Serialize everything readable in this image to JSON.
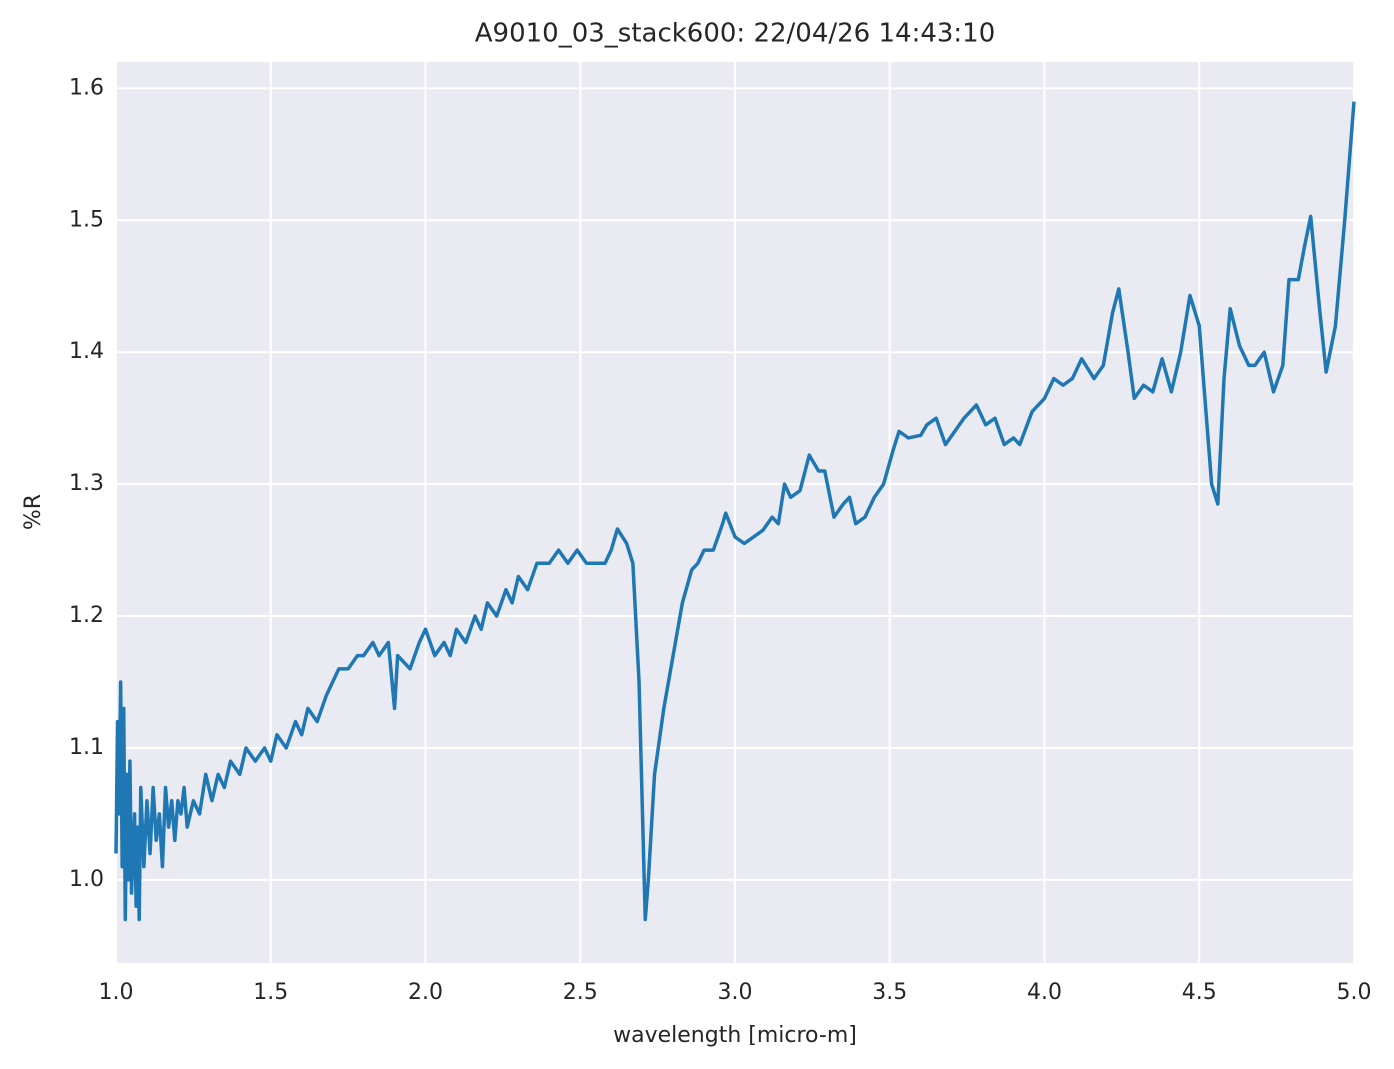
{
  "chart_data": {
    "type": "line",
    "title": "A9010_03_stack600:  22/04/26 14:43:10",
    "xlabel": "wavelength [micro-m]",
    "ylabel": "%R",
    "color": "#1f77b4",
    "grid": true,
    "xlim": [
      1.0,
      5.0
    ],
    "ylim": [
      0.937,
      1.62
    ],
    "xticks": [
      {
        "value": 1.0,
        "label": "1.0"
      },
      {
        "value": 1.5,
        "label": "1.5"
      },
      {
        "value": 2.0,
        "label": "2.0"
      },
      {
        "value": 2.5,
        "label": "2.5"
      },
      {
        "value": 3.0,
        "label": "3.0"
      },
      {
        "value": 3.5,
        "label": "3.5"
      },
      {
        "value": 4.0,
        "label": "4.0"
      },
      {
        "value": 4.5,
        "label": "4.5"
      },
      {
        "value": 5.0,
        "label": "5.0"
      }
    ],
    "yticks": [
      {
        "value": 1.0,
        "label": "1.0"
      },
      1.1,
      1.2,
      1.3,
      1.4,
      1.5,
      1.6
    ],
    "x": [
      1.0,
      1.005,
      1.01,
      1.015,
      1.02,
      1.025,
      1.03,
      1.035,
      1.04,
      1.045,
      1.05,
      1.06,
      1.065,
      1.07,
      1.075,
      1.08,
      1.09,
      1.1,
      1.11,
      1.12,
      1.13,
      1.14,
      1.15,
      1.16,
      1.17,
      1.18,
      1.19,
      1.2,
      1.21,
      1.22,
      1.23,
      1.25,
      1.27,
      1.29,
      1.31,
      1.33,
      1.35,
      1.37,
      1.4,
      1.42,
      1.45,
      1.48,
      1.5,
      1.52,
      1.55,
      1.58,
      1.6,
      1.62,
      1.65,
      1.68,
      1.7,
      1.72,
      1.75,
      1.78,
      1.8,
      1.83,
      1.85,
      1.88,
      1.9,
      1.91,
      1.95,
      1.98,
      2.0,
      2.03,
      2.06,
      2.08,
      2.1,
      2.13,
      2.16,
      2.18,
      2.2,
      2.23,
      2.26,
      2.28,
      2.3,
      2.33,
      2.36,
      2.4,
      2.43,
      2.46,
      2.49,
      2.52,
      2.55,
      2.58,
      2.6,
      2.62,
      2.65,
      2.67,
      2.69,
      2.71,
      2.72,
      2.74,
      2.77,
      2.8,
      2.83,
      2.86,
      2.88,
      2.9,
      2.93,
      2.96,
      2.97,
      3.0,
      3.03,
      3.06,
      3.09,
      3.12,
      3.14,
      3.16,
      3.18,
      3.21,
      3.24,
      3.27,
      3.29,
      3.32,
      3.35,
      3.37,
      3.39,
      3.42,
      3.45,
      3.48,
      3.51,
      3.53,
      3.56,
      3.6,
      3.62,
      3.65,
      3.68,
      3.71,
      3.74,
      3.78,
      3.81,
      3.84,
      3.87,
      3.9,
      3.92,
      3.96,
      4.0,
      4.03,
      4.06,
      4.09,
      4.12,
      4.16,
      4.19,
      4.22,
      4.24,
      4.27,
      4.29,
      4.32,
      4.35,
      4.38,
      4.41,
      4.44,
      4.47,
      4.5,
      4.52,
      4.54,
      4.56,
      4.58,
      4.6,
      4.63,
      4.66,
      4.68,
      4.71,
      4.74,
      4.77,
      4.79,
      4.82,
      4.84,
      4.86,
      4.89,
      4.91,
      4.94,
      4.97,
      5.0
    ],
    "values": [
      1.02,
      1.12,
      1.05,
      1.15,
      1.01,
      1.13,
      0.97,
      1.08,
      1.0,
      1.09,
      0.99,
      1.05,
      0.98,
      1.04,
      0.97,
      1.07,
      1.01,
      1.06,
      1.02,
      1.07,
      1.03,
      1.05,
      1.01,
      1.07,
      1.04,
      1.06,
      1.03,
      1.06,
      1.05,
      1.07,
      1.04,
      1.06,
      1.05,
      1.08,
      1.06,
      1.08,
      1.07,
      1.09,
      1.08,
      1.1,
      1.09,
      1.1,
      1.09,
      1.11,
      1.1,
      1.12,
      1.11,
      1.13,
      1.12,
      1.14,
      1.15,
      1.16,
      1.16,
      1.17,
      1.17,
      1.18,
      1.17,
      1.18,
      1.13,
      1.17,
      1.16,
      1.18,
      1.19,
      1.17,
      1.18,
      1.17,
      1.19,
      1.18,
      1.2,
      1.19,
      1.21,
      1.2,
      1.22,
      1.21,
      1.23,
      1.22,
      1.24,
      1.24,
      1.25,
      1.24,
      1.25,
      1.24,
      1.24,
      1.24,
      1.25,
      1.266,
      1.255,
      1.24,
      1.15,
      0.97,
      1.0,
      1.08,
      1.13,
      1.17,
      1.21,
      1.235,
      1.24,
      1.25,
      1.25,
      1.27,
      1.278,
      1.26,
      1.255,
      1.26,
      1.265,
      1.275,
      1.27,
      1.3,
      1.29,
      1.295,
      1.322,
      1.31,
      1.31,
      1.275,
      1.285,
      1.29,
      1.27,
      1.275,
      1.29,
      1.3,
      1.325,
      1.34,
      1.335,
      1.337,
      1.345,
      1.35,
      1.33,
      1.34,
      1.35,
      1.36,
      1.345,
      1.35,
      1.33,
      1.335,
      1.33,
      1.355,
      1.365,
      1.38,
      1.375,
      1.38,
      1.395,
      1.38,
      1.39,
      1.43,
      1.448,
      1.4,
      1.365,
      1.375,
      1.37,
      1.395,
      1.37,
      1.4,
      1.443,
      1.42,
      1.36,
      1.3,
      1.285,
      1.38,
      1.433,
      1.405,
      1.39,
      1.39,
      1.4,
      1.37,
      1.39,
      1.455,
      1.455,
      1.48,
      1.503,
      1.43,
      1.385,
      1.42,
      1.5,
      1.59
    ]
  }
}
